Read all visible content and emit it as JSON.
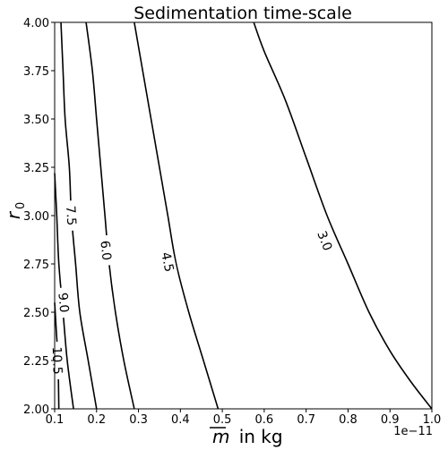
{
  "chart_data": {
    "type": "contour",
    "title": "Sedimentation time-scale",
    "xlabel_math": "m",
    "xlabel_text": "  in kg",
    "ylabel_base": "r",
    "ylabel_sub": "0",
    "x_offset_label": "1e−11",
    "xlim": [
      0.1,
      1.0
    ],
    "ylim": [
      2.0,
      4.0
    ],
    "x_ticks": [
      0.1,
      0.2,
      0.3,
      0.4,
      0.5,
      0.6,
      0.7,
      0.8,
      0.9,
      1.0
    ],
    "x_tick_labels": [
      "0.1",
      "0.2",
      "0.3",
      "0.4",
      "0.5",
      "0.6",
      "0.7",
      "0.8",
      "0.9",
      "1.0"
    ],
    "y_ticks": [
      2.0,
      2.25,
      2.5,
      2.75,
      3.0,
      3.25,
      3.5,
      3.75,
      4.0
    ],
    "y_tick_labels": [
      "2.00",
      "2.25",
      "2.50",
      "2.75",
      "3.00",
      "3.25",
      "3.50",
      "3.75",
      "4.00"
    ],
    "grid": false,
    "line_color": "#000000",
    "levels": [
      {
        "label": "3.0",
        "points": [
          [
            0.575,
            4.0
          ],
          [
            0.6,
            3.85
          ],
          [
            0.65,
            3.6
          ],
          [
            0.7,
            3.3
          ],
          [
            0.75,
            3.0
          ],
          [
            0.8,
            2.75
          ],
          [
            0.85,
            2.5
          ],
          [
            0.9,
            2.3
          ],
          [
            0.95,
            2.14
          ],
          [
            1.0,
            2.0
          ]
        ],
        "label_at": [
          0.745,
          2.87
        ]
      },
      {
        "label": "4.5",
        "points": [
          [
            0.29,
            4.0
          ],
          [
            0.31,
            3.75
          ],
          [
            0.33,
            3.5
          ],
          [
            0.35,
            3.25
          ],
          [
            0.37,
            3.0
          ],
          [
            0.39,
            2.75
          ],
          [
            0.42,
            2.5
          ],
          [
            0.455,
            2.25
          ],
          [
            0.49,
            2.0
          ]
        ],
        "label_at": [
          0.37,
          2.76
        ]
      },
      {
        "label": "6.0",
        "points": [
          [
            0.175,
            4.0
          ],
          [
            0.19,
            3.75
          ],
          [
            0.2,
            3.5
          ],
          [
            0.21,
            3.25
          ],
          [
            0.22,
            3.0
          ],
          [
            0.23,
            2.75
          ],
          [
            0.245,
            2.5
          ],
          [
            0.265,
            2.25
          ],
          [
            0.29,
            2.0
          ]
        ],
        "label_at": [
          0.223,
          2.82
        ]
      },
      {
        "label": "7.5",
        "points": [
          [
            0.115,
            4.0
          ],
          [
            0.12,
            3.75
          ],
          [
            0.125,
            3.5
          ],
          [
            0.135,
            3.25
          ],
          [
            0.14,
            3.0
          ],
          [
            0.15,
            2.75
          ],
          [
            0.16,
            2.5
          ],
          [
            0.18,
            2.25
          ],
          [
            0.2,
            2.0
          ]
        ],
        "label_at": [
          0.14,
          3.0
        ]
      },
      {
        "label": "9.0",
        "points": [
          [
            0.1,
            3.22
          ],
          [
            0.105,
            3.0
          ],
          [
            0.11,
            2.75
          ],
          [
            0.12,
            2.5
          ],
          [
            0.13,
            2.25
          ],
          [
            0.145,
            2.0
          ]
        ],
        "label_at": [
          0.122,
          2.55
        ]
      },
      {
        "label": "10.5",
        "points": [
          [
            0.1,
            2.55
          ],
          [
            0.104,
            2.4
          ],
          [
            0.108,
            2.25
          ],
          [
            0.11,
            2.0
          ]
        ],
        "label_at": [
          0.107,
          2.25
        ]
      }
    ]
  }
}
